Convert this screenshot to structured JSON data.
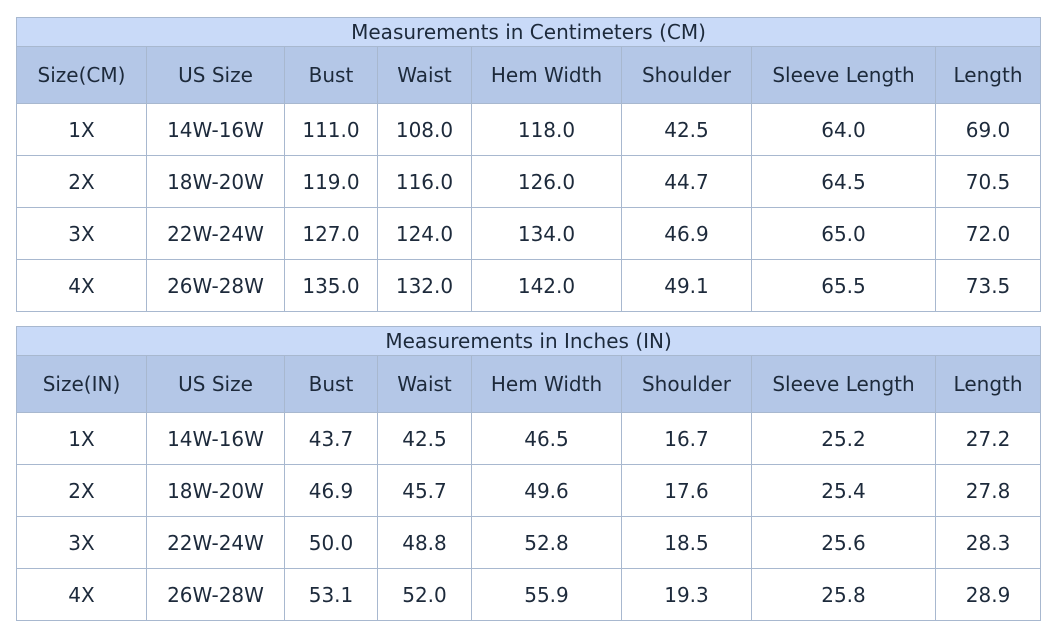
{
  "tables": [
    {
      "title": "Measurements in Centimeters (CM)",
      "headers": [
        "Size(CM)",
        "US Size",
        "Bust",
        "Waist",
        "Hem Width",
        "Shoulder",
        "Sleeve Length",
        "Length"
      ],
      "rows": [
        [
          "1X",
          "14W-16W",
          "111.0",
          "108.0",
          "118.0",
          "42.5",
          "64.0",
          "69.0"
        ],
        [
          "2X",
          "18W-20W",
          "119.0",
          "116.0",
          "126.0",
          "44.7",
          "64.5",
          "70.5"
        ],
        [
          "3X",
          "22W-24W",
          "127.0",
          "124.0",
          "134.0",
          "46.9",
          "65.0",
          "72.0"
        ],
        [
          "4X",
          "26W-28W",
          "135.0",
          "132.0",
          "142.0",
          "49.1",
          "65.5",
          "73.5"
        ]
      ]
    },
    {
      "title": "Measurements in Inches (IN)",
      "headers": [
        "Size(IN)",
        "US Size",
        "Bust",
        "Waist",
        "Hem Width",
        "Shoulder",
        "Sleeve Length",
        "Length"
      ],
      "rows": [
        [
          "1X",
          "14W-16W",
          "43.7",
          "42.5",
          "46.5",
          "16.7",
          "25.2",
          "27.2"
        ],
        [
          "2X",
          "18W-20W",
          "46.9",
          "45.7",
          "49.6",
          "17.6",
          "25.4",
          "27.8"
        ],
        [
          "3X",
          "22W-24W",
          "50.0",
          "48.8",
          "52.8",
          "18.5",
          "25.6",
          "28.3"
        ],
        [
          "4X",
          "26W-28W",
          "53.1",
          "52.0",
          "55.9",
          "19.3",
          "25.8",
          "28.9"
        ]
      ]
    }
  ]
}
